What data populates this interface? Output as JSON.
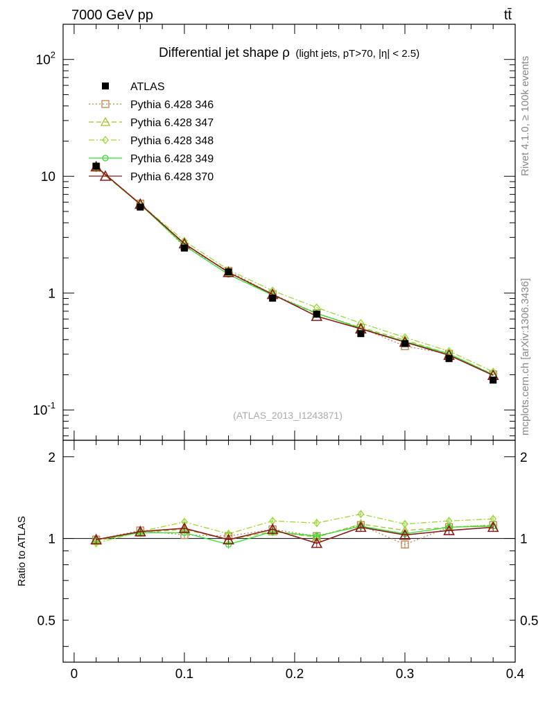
{
  "header": {
    "energy_label": "7000 GeV pp",
    "process_label": "tt̄",
    "side_rivet": "Rivet 4.1.0, ≥ 100k events",
    "side_mcplots": "mcplots.cern.ch [arXiv:1306.3436]",
    "analysis_id": "(ATLAS_2013_I1243871)"
  },
  "title": {
    "main": "Differential jet shape ρ",
    "sub": "(light jets, pT>70, |η| < 2.5)"
  },
  "ratio_ylabel": "Ratio to ATLAS",
  "chart_data": {
    "type": "line",
    "title": "Differential jet shape ρ (light jets, pT>70, |η| < 2.5)",
    "xlabel": "",
    "ylabel": "",
    "x": [
      0.02,
      0.06,
      0.1,
      0.14,
      0.18,
      0.22,
      0.26,
      0.3,
      0.34,
      0.38
    ],
    "xlim": [
      -0.01,
      0.4
    ],
    "ylim": [
      0.055,
      200
    ],
    "yscale": "log",
    "ratio_ylim": [
      0.35,
      2.3
    ],
    "ratio_ylabel": "Ratio to ATLAS",
    "x_ticks": [
      "0",
      "0.1",
      "0.2",
      "0.3",
      "0.4"
    ],
    "y_ticks": [
      "10^-1",
      "1",
      "10",
      "10^2"
    ],
    "ratio_ticks": [
      "0.5",
      "1",
      "2"
    ],
    "legend_position": "top-left",
    "data": {
      "name": "ATLAS",
      "color": "#000000",
      "values": [
        12.2,
        5.45,
        2.43,
        1.52,
        0.905,
        0.66,
        0.45,
        0.37,
        0.275,
        0.18
      ]
    },
    "series": [
      {
        "name": "Pythia 6.428 346",
        "color": "#b5854b",
        "marker": "square",
        "dash": "2,3",
        "ratio": [
          0.99,
          1.07,
          1.03,
          1.02,
          1.08,
          1.02,
          1.12,
          0.95,
          1.1,
          1.12
        ]
      },
      {
        "name": "Pythia 6.428 347",
        "color": "#a2c22e",
        "marker": "triangle",
        "dash": "7,4",
        "ratio": [
          0.98,
          1.05,
          1.08,
          0.99,
          1.06,
          1.01,
          1.13,
          1.07,
          1.1,
          1.12
        ]
      },
      {
        "name": "Pythia 6.428 348",
        "color": "#9ad832",
        "marker": "diamond",
        "dash": "8,3,2,3",
        "ratio": [
          0.96,
          1.06,
          1.15,
          1.04,
          1.16,
          1.14,
          1.23,
          1.13,
          1.16,
          1.18
        ]
      },
      {
        "name": "Pythia 6.428 349",
        "color": "#33dd33",
        "marker": "circle",
        "dash": "",
        "ratio": [
          0.99,
          1.05,
          1.05,
          0.95,
          1.06,
          1.02,
          1.11,
          1.04,
          1.1,
          1.11
        ]
      },
      {
        "name": "Pythia 6.428 370",
        "color": "#8b1a1a",
        "marker": "triangle-open",
        "dash": "",
        "ratio": [
          0.99,
          1.06,
          1.09,
          0.99,
          1.08,
          0.96,
          1.1,
          1.03,
          1.07,
          1.1
        ]
      }
    ]
  }
}
